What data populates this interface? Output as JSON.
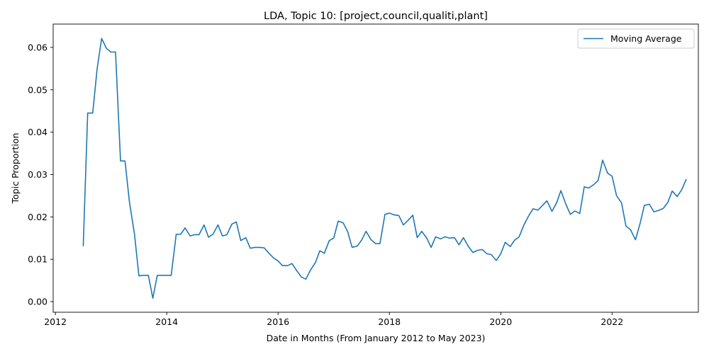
{
  "chart_data": {
    "type": "line",
    "title": "LDA, Topic 10: [project,council,qualiti,plant]",
    "xlabel": "Date in Months (From January 2012 to May 2023)",
    "ylabel": "Topic Proportion",
    "xlim": [
      2011.96,
      2023.55
    ],
    "ylim": [
      -0.0025,
      0.0655
    ],
    "x_ticks": [
      2012,
      2014,
      2016,
      2018,
      2020,
      2022
    ],
    "x_tick_labels": [
      "2012",
      "2014",
      "2016",
      "2018",
      "2020",
      "2022"
    ],
    "y_ticks": [
      0.0,
      0.01,
      0.02,
      0.03,
      0.04,
      0.05,
      0.06
    ],
    "y_tick_labels": [
      "0.00",
      "0.01",
      "0.02",
      "0.03",
      "0.04",
      "0.05",
      "0.06"
    ],
    "grid": false,
    "legend_position": "top-right",
    "series": [
      {
        "name": "Moving Average",
        "color": "#1f77b4",
        "x": [
          2012.5,
          2012.58,
          2012.67,
          2012.75,
          2012.83,
          2012.92,
          2013.0,
          2013.08,
          2013.17,
          2013.25,
          2013.33,
          2013.42,
          2013.5,
          2013.58,
          2013.67,
          2013.75,
          2013.83,
          2013.92,
          2014.0,
          2014.08,
          2014.17,
          2014.25,
          2014.33,
          2014.42,
          2014.5,
          2014.58,
          2014.67,
          2014.75,
          2014.83,
          2014.92,
          2015.0,
          2015.08,
          2015.17,
          2015.25,
          2015.33,
          2015.42,
          2015.5,
          2015.58,
          2015.67,
          2015.75,
          2015.83,
          2015.92,
          2016.0,
          2016.08,
          2016.17,
          2016.25,
          2016.33,
          2016.42,
          2016.5,
          2016.58,
          2016.67,
          2016.75,
          2016.83,
          2016.92,
          2017.0,
          2017.08,
          2017.17,
          2017.25,
          2017.33,
          2017.42,
          2017.5,
          2017.58,
          2017.67,
          2017.75,
          2017.83,
          2017.92,
          2018.0,
          2018.08,
          2018.17,
          2018.25,
          2018.33,
          2018.42,
          2018.5,
          2018.58,
          2018.67,
          2018.75,
          2018.83,
          2018.92,
          2019.0,
          2019.08,
          2019.17,
          2019.25,
          2019.33,
          2019.42,
          2019.5,
          2019.58,
          2019.67,
          2019.75,
          2019.83,
          2019.92,
          2020.0,
          2020.08,
          2020.17,
          2020.25,
          2020.33,
          2020.42,
          2020.5,
          2020.58,
          2020.67,
          2020.75,
          2020.83,
          2020.92,
          2021.0,
          2021.08,
          2021.17,
          2021.25,
          2021.33,
          2021.42,
          2021.5,
          2021.58,
          2021.67,
          2021.75,
          2021.83,
          2021.92,
          2022.0,
          2022.08,
          2022.17,
          2022.25,
          2022.33,
          2022.42,
          2022.5,
          2022.58,
          2022.67,
          2022.75,
          2022.83,
          2022.92,
          2023.0,
          2023.08,
          2023.17,
          2023.25,
          2023.33
        ],
        "y": [
          0.0132,
          0.0445,
          0.0445,
          0.055,
          0.0621,
          0.0597,
          0.0589,
          0.0589,
          0.0332,
          0.0332,
          0.0235,
          0.016,
          0.0061,
          0.0062,
          0.0062,
          0.0008,
          0.0062,
          0.0062,
          0.0062,
          0.0062,
          0.0159,
          0.0159,
          0.0174,
          0.0155,
          0.0158,
          0.0158,
          0.0181,
          0.0152,
          0.0159,
          0.0181,
          0.0155,
          0.0158,
          0.0183,
          0.0188,
          0.0144,
          0.0151,
          0.0126,
          0.0128,
          0.0128,
          0.0127,
          0.0115,
          0.0103,
          0.0096,
          0.0085,
          0.0085,
          0.009,
          0.0074,
          0.0058,
          0.0053,
          0.0074,
          0.0092,
          0.012,
          0.0114,
          0.0144,
          0.015,
          0.019,
          0.0186,
          0.0165,
          0.0128,
          0.0131,
          0.0145,
          0.0166,
          0.0146,
          0.0137,
          0.0137,
          0.0206,
          0.0209,
          0.0205,
          0.0203,
          0.0181,
          0.0191,
          0.0204,
          0.0151,
          0.0166,
          0.015,
          0.0128,
          0.0153,
          0.0148,
          0.0153,
          0.015,
          0.0151,
          0.0134,
          0.0151,
          0.013,
          0.0116,
          0.0121,
          0.0123,
          0.0113,
          0.0111,
          0.0097,
          0.0113,
          0.014,
          0.013,
          0.0145,
          0.0153,
          0.0182,
          0.0202,
          0.0219,
          0.0216,
          0.0227,
          0.0238,
          0.0213,
          0.0232,
          0.0262,
          0.023,
          0.0206,
          0.0214,
          0.0208,
          0.0271,
          0.0268,
          0.0276,
          0.0286,
          0.0334,
          0.0303,
          0.0296,
          0.025,
          0.0233,
          0.0178,
          0.017,
          0.0146,
          0.0183,
          0.0227,
          0.023,
          0.0212,
          0.0215,
          0.022,
          0.0234,
          0.0261,
          0.0248,
          0.0264,
          0.0288
        ]
      }
    ]
  }
}
